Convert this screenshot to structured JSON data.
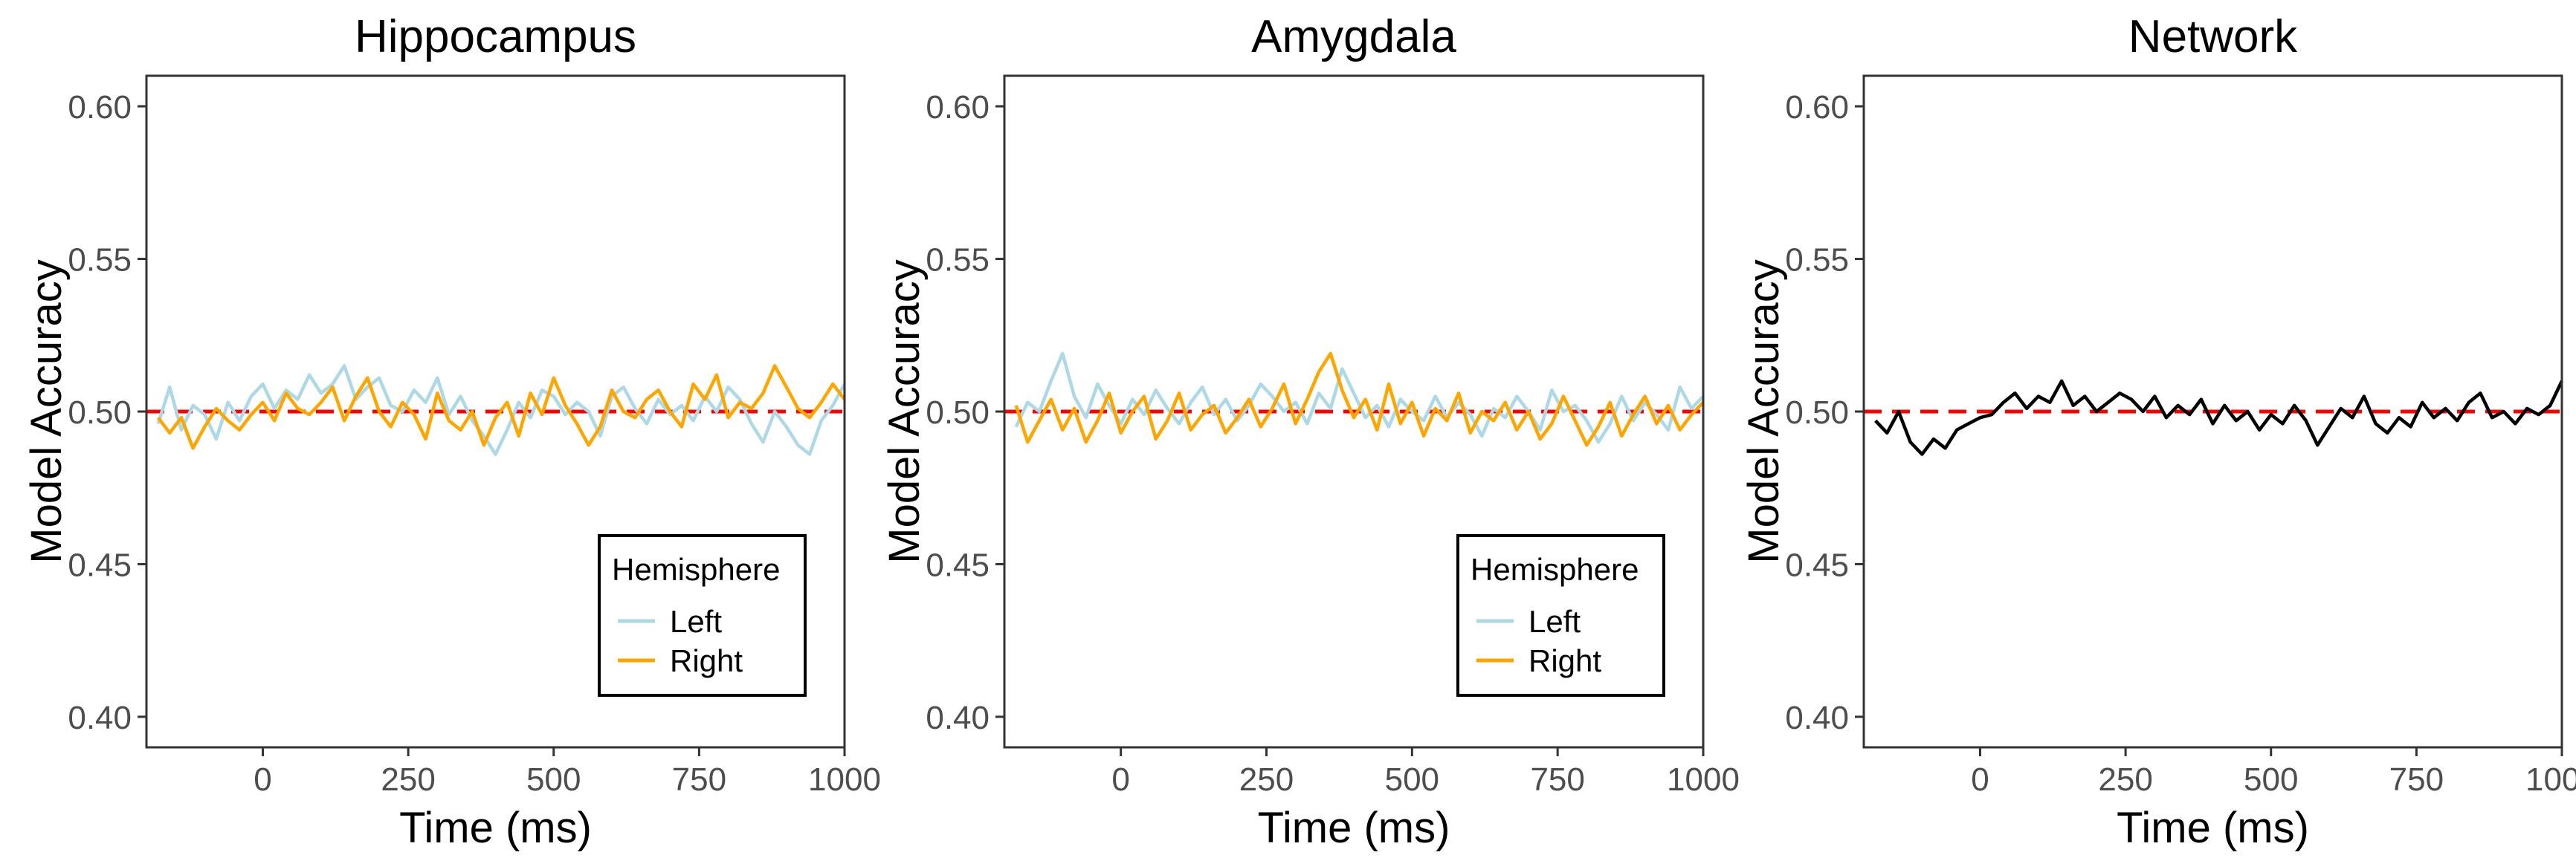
{
  "chart_data": [
    {
      "type": "line",
      "title": "Hippocampus",
      "xlabel": "Time (ms)",
      "ylabel": "Model Accuracy",
      "xlim": [
        -200,
        1000
      ],
      "ylim": [
        0.39,
        0.61
      ],
      "x_ticks": [
        0,
        250,
        500,
        750,
        1000
      ],
      "y_ticks": [
        0.4,
        0.45,
        0.5,
        0.55,
        0.6
      ],
      "x_tick_labels": [
        "0",
        "250",
        "500",
        "750",
        "1000"
      ],
      "y_tick_labels": [
        "0.40",
        "0.45",
        "0.50",
        "0.55",
        "0.60"
      ],
      "reference_line": {
        "y": 0.5,
        "color": "#ff0000",
        "style": "dashed"
      },
      "grid": false,
      "legend": {
        "title": "Hemisphere",
        "position": "bottom-right"
      },
      "x": [
        -180,
        -160,
        -140,
        -120,
        -100,
        -80,
        -60,
        -40,
        -20,
        0,
        20,
        40,
        60,
        80,
        100,
        120,
        140,
        160,
        180,
        200,
        220,
        240,
        260,
        280,
        300,
        320,
        340,
        360,
        380,
        400,
        420,
        440,
        460,
        480,
        500,
        520,
        540,
        560,
        580,
        600,
        620,
        640,
        660,
        680,
        700,
        720,
        740,
        760,
        780,
        800,
        820,
        840,
        860,
        880,
        900,
        920,
        940,
        960,
        980,
        1000
      ],
      "series": [
        {
          "name": "Left",
          "color": "#add8e6",
          "values": [
            0.496,
            0.508,
            0.494,
            0.502,
            0.499,
            0.491,
            0.503,
            0.497,
            0.505,
            0.509,
            0.501,
            0.507,
            0.504,
            0.512,
            0.506,
            0.509,
            0.515,
            0.504,
            0.508,
            0.511,
            0.502,
            0.5,
            0.507,
            0.503,
            0.511,
            0.499,
            0.505,
            0.497,
            0.492,
            0.486,
            0.494,
            0.503,
            0.498,
            0.507,
            0.505,
            0.499,
            0.503,
            0.5,
            0.492,
            0.505,
            0.508,
            0.501,
            0.496,
            0.504,
            0.499,
            0.502,
            0.497,
            0.505,
            0.5,
            0.508,
            0.504,
            0.496,
            0.49,
            0.5,
            0.495,
            0.489,
            0.486,
            0.497,
            0.502,
            0.509
          ]
        },
        {
          "name": "Right",
          "color": "#ffa500",
          "values": [
            0.498,
            0.493,
            0.498,
            0.488,
            0.495,
            0.501,
            0.497,
            0.494,
            0.499,
            0.503,
            0.497,
            0.506,
            0.501,
            0.499,
            0.503,
            0.508,
            0.497,
            0.505,
            0.511,
            0.5,
            0.495,
            0.503,
            0.499,
            0.491,
            0.506,
            0.497,
            0.494,
            0.5,
            0.489,
            0.498,
            0.503,
            0.492,
            0.506,
            0.499,
            0.511,
            0.502,
            0.496,
            0.489,
            0.495,
            0.507,
            0.5,
            0.498,
            0.504,
            0.507,
            0.5,
            0.495,
            0.509,
            0.504,
            0.512,
            0.498,
            0.503,
            0.501,
            0.506,
            0.515,
            0.508,
            0.501,
            0.498,
            0.503,
            0.509,
            0.504
          ]
        }
      ]
    },
    {
      "type": "line",
      "title": "Amygdala",
      "xlabel": "Time (ms)",
      "ylabel": "Model Accuracy",
      "xlim": [
        -200,
        1000
      ],
      "ylim": [
        0.39,
        0.61
      ],
      "x_ticks": [
        0,
        250,
        500,
        750,
        1000
      ],
      "y_ticks": [
        0.4,
        0.45,
        0.5,
        0.55,
        0.6
      ],
      "x_tick_labels": [
        "0",
        "250",
        "500",
        "750",
        "1000"
      ],
      "y_tick_labels": [
        "0.40",
        "0.45",
        "0.50",
        "0.55",
        "0.60"
      ],
      "reference_line": {
        "y": 0.5,
        "color": "#ff0000",
        "style": "dashed"
      },
      "grid": false,
      "legend": {
        "title": "Hemisphere",
        "position": "bottom-right"
      },
      "x": [
        -180,
        -160,
        -140,
        -120,
        -100,
        -80,
        -60,
        -40,
        -20,
        0,
        20,
        40,
        60,
        80,
        100,
        120,
        140,
        160,
        180,
        200,
        220,
        240,
        260,
        280,
        300,
        320,
        340,
        360,
        380,
        400,
        420,
        440,
        460,
        480,
        500,
        520,
        540,
        560,
        580,
        600,
        620,
        640,
        660,
        680,
        700,
        720,
        740,
        760,
        780,
        800,
        820,
        840,
        860,
        880,
        900,
        920,
        940,
        960,
        980,
        1000
      ],
      "series": [
        {
          "name": "Left",
          "color": "#add8e6",
          "values": [
            0.495,
            0.503,
            0.5,
            0.51,
            0.519,
            0.505,
            0.498,
            0.509,
            0.502,
            0.496,
            0.504,
            0.499,
            0.507,
            0.501,
            0.496,
            0.503,
            0.508,
            0.499,
            0.504,
            0.497,
            0.502,
            0.509,
            0.505,
            0.5,
            0.503,
            0.496,
            0.506,
            0.501,
            0.514,
            0.506,
            0.498,
            0.502,
            0.495,
            0.504,
            0.5,
            0.497,
            0.505,
            0.498,
            0.503,
            0.499,
            0.492,
            0.501,
            0.498,
            0.505,
            0.5,
            0.494,
            0.507,
            0.5,
            0.502,
            0.497,
            0.49,
            0.496,
            0.505,
            0.497,
            0.503,
            0.499,
            0.494,
            0.508,
            0.501,
            0.505
          ]
        },
        {
          "name": "Right",
          "color": "#ffa500",
          "values": [
            0.502,
            0.49,
            0.497,
            0.504,
            0.494,
            0.501,
            0.49,
            0.497,
            0.506,
            0.493,
            0.5,
            0.505,
            0.491,
            0.497,
            0.506,
            0.494,
            0.499,
            0.502,
            0.493,
            0.498,
            0.504,
            0.495,
            0.501,
            0.509,
            0.496,
            0.504,
            0.513,
            0.519,
            0.507,
            0.498,
            0.504,
            0.494,
            0.509,
            0.496,
            0.503,
            0.492,
            0.501,
            0.497,
            0.506,
            0.493,
            0.5,
            0.497,
            0.503,
            0.494,
            0.5,
            0.491,
            0.496,
            0.505,
            0.497,
            0.489,
            0.495,
            0.503,
            0.492,
            0.499,
            0.505,
            0.496,
            0.502,
            0.494,
            0.499,
            0.503
          ]
        }
      ]
    },
    {
      "type": "line",
      "title": "Network",
      "xlabel": "Time (ms)",
      "ylabel": "Model Accuracy",
      "xlim": [
        -200,
        1000
      ],
      "ylim": [
        0.39,
        0.61
      ],
      "x_ticks": [
        0,
        250,
        500,
        750,
        1000
      ],
      "y_ticks": [
        0.4,
        0.45,
        0.5,
        0.55,
        0.6
      ],
      "x_tick_labels": [
        "0",
        "250",
        "500",
        "750",
        "1000"
      ],
      "y_tick_labels": [
        "0.40",
        "0.45",
        "0.50",
        "0.55",
        "0.60"
      ],
      "reference_line": {
        "y": 0.5,
        "color": "#ff0000",
        "style": "dashed"
      },
      "grid": false,
      "legend": null,
      "x": [
        -180,
        -160,
        -140,
        -120,
        -100,
        -80,
        -60,
        -40,
        -20,
        0,
        20,
        40,
        60,
        80,
        100,
        120,
        140,
        160,
        180,
        200,
        220,
        240,
        260,
        280,
        300,
        320,
        340,
        360,
        380,
        400,
        420,
        440,
        460,
        480,
        500,
        520,
        540,
        560,
        580,
        600,
        620,
        640,
        660,
        680,
        700,
        720,
        740,
        760,
        780,
        800,
        820,
        840,
        860,
        880,
        900,
        920,
        940,
        960,
        980,
        1000
      ],
      "series": [
        {
          "color": "#000000",
          "values": [
            0.497,
            0.493,
            0.5,
            0.49,
            0.486,
            0.491,
            0.488,
            0.494,
            0.496,
            0.498,
            0.499,
            0.503,
            0.506,
            0.501,
            0.505,
            0.503,
            0.51,
            0.502,
            0.505,
            0.5,
            0.503,
            0.506,
            0.504,
            0.5,
            0.505,
            0.498,
            0.502,
            0.499,
            0.504,
            0.496,
            0.502,
            0.497,
            0.5,
            0.494,
            0.499,
            0.496,
            0.502,
            0.497,
            0.489,
            0.495,
            0.501,
            0.498,
            0.505,
            0.496,
            0.493,
            0.498,
            0.495,
            0.503,
            0.498,
            0.501,
            0.497,
            0.503,
            0.506,
            0.498,
            0.5,
            0.496,
            0.501,
            0.499,
            0.502,
            0.51
          ]
        }
      ]
    }
  ]
}
